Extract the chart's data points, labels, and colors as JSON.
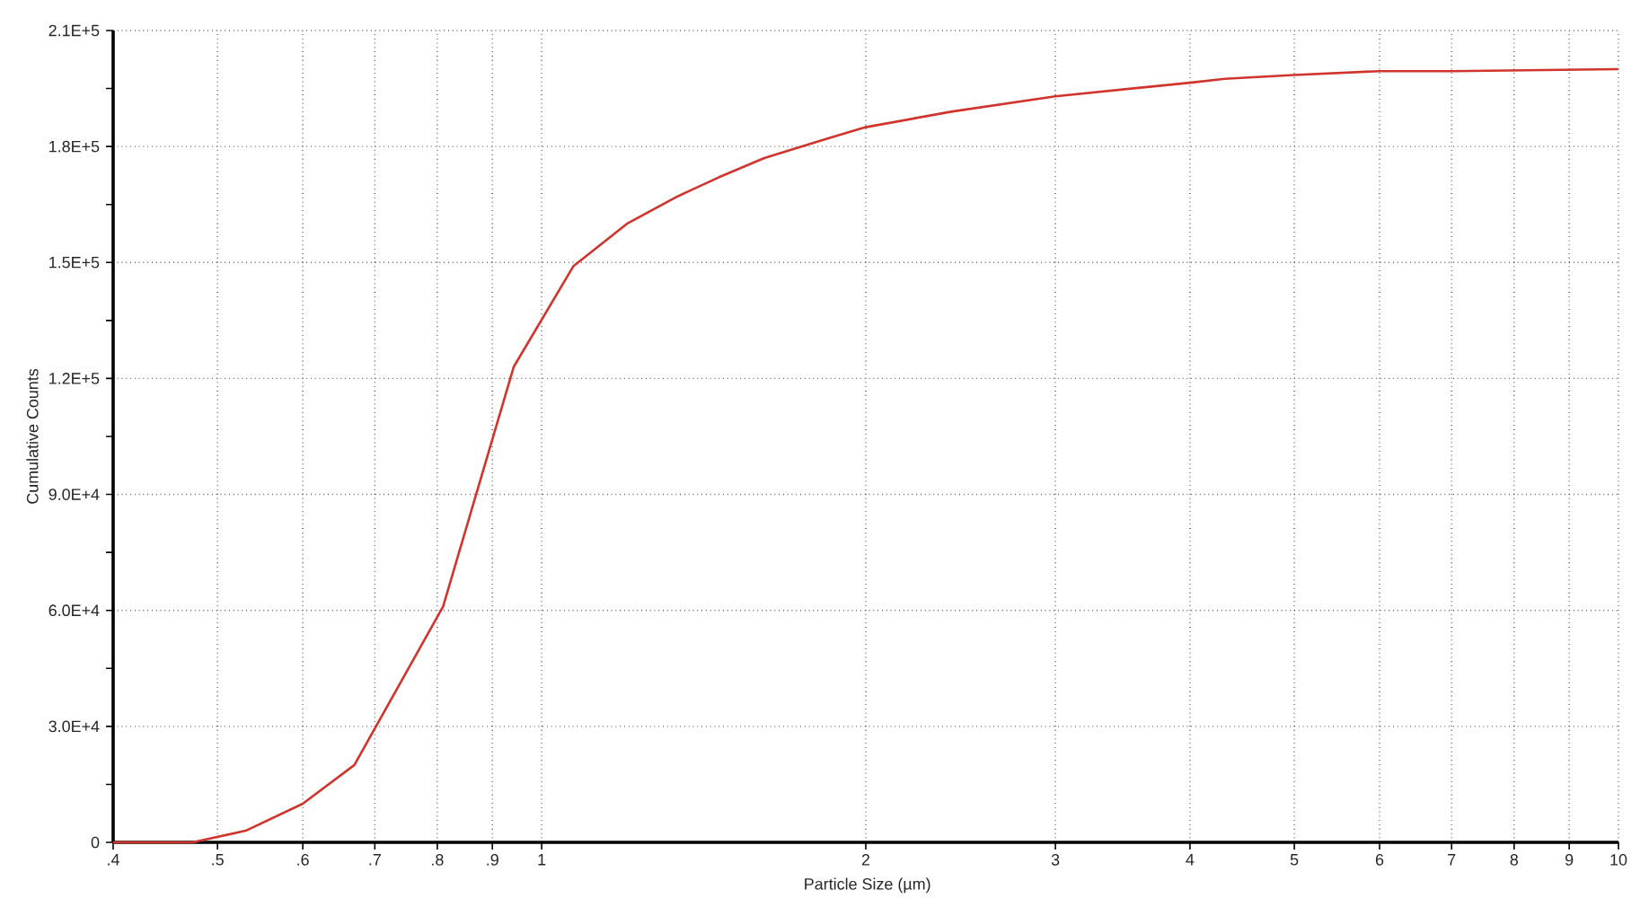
{
  "chart_data": {
    "type": "line",
    "xlabel": "Particle Size (µm)",
    "ylabel": "Cumulative Counts",
    "log": "x",
    "x": [
      0.4,
      0.474,
      0.531,
      0.6,
      0.67,
      0.81,
      0.942,
      1.07,
      1.2,
      1.335,
      1.46,
      1.61,
      1.84,
      2.0,
      2.4,
      3.0,
      4.0,
      4.31,
      5.0,
      6.0,
      7.0,
      10.0
    ],
    "values": [
      0,
      0,
      3000,
      10000,
      20000,
      61000,
      123000,
      149000,
      160000,
      167000,
      172000,
      177000,
      182000,
      185000,
      189000,
      193000,
      196500,
      197500,
      198500,
      199500,
      199500,
      200000
    ],
    "color": "#d0342c",
    "xlim": [
      0.4,
      10
    ],
    "xticks": [
      {
        "value": 0.4,
        "label": ".4"
      },
      {
        "value": 0.5,
        "label": ".5"
      },
      {
        "value": 0.6,
        "label": ".6"
      },
      {
        "value": 0.7,
        "label": ".7"
      },
      {
        "value": 0.8,
        "label": ".8"
      },
      {
        "value": 0.9,
        "label": ".9"
      },
      1,
      2,
      3,
      4,
      5,
      6,
      7,
      8,
      9,
      10
    ],
    "ylim": [
      0,
      210000
    ],
    "yticks": [
      0,
      {
        "value": 30000,
        "label": "3.0E+4"
      },
      {
        "value": 60000,
        "label": "6.0E+4"
      },
      {
        "value": 90000,
        "label": "9.0E+4"
      },
      {
        "value": 120000,
        "label": "1.2E+5"
      },
      {
        "value": 150000,
        "label": "1.5E+5"
      },
      {
        "value": 180000,
        "label": "1.8E+5"
      },
      {
        "value": 210000,
        "label": "2.1E+5"
      }
    ],
    "grid": true,
    "marker": "none",
    "line_style": "solid"
  }
}
